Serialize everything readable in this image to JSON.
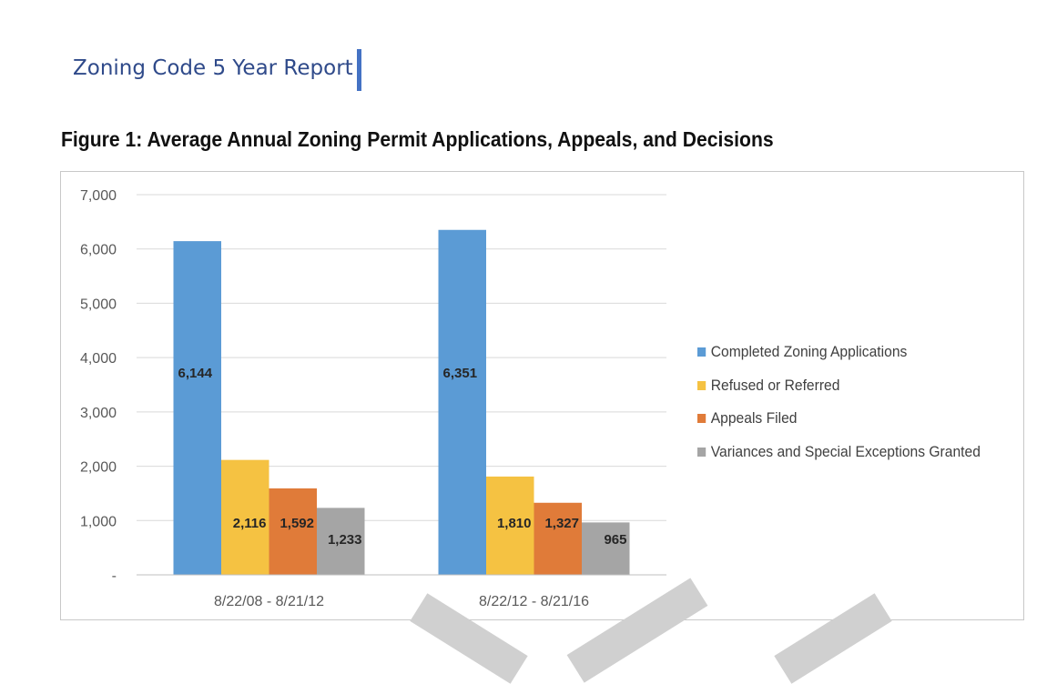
{
  "header": {
    "report_title": "Zoning Code 5 Year Report",
    "accent_color": "#4472c4"
  },
  "figure": {
    "caption": "Figure 1: Average Annual Zoning Permit Applications, Appeals, and Decisions"
  },
  "chart_data": {
    "type": "bar",
    "title": "",
    "xlabel": "",
    "ylabel": "",
    "categories": [
      "8/22/08 - 8/21/12",
      "8/22/12 - 8/21/16"
    ],
    "series": [
      {
        "name": "Completed Zoning Applications",
        "values": [
          6144,
          6351
        ],
        "labels": [
          "6,144",
          "6,351"
        ],
        "color": "#5b9bd5"
      },
      {
        "name": "Refused or Referred",
        "values": [
          2116,
          1810
        ],
        "labels": [
          "2,116",
          "1,810"
        ],
        "color": "#f5c242"
      },
      {
        "name": "Appeals Filed",
        "values": [
          1592,
          1327
        ],
        "labels": [
          "1,592",
          "1,327"
        ],
        "color": "#e07b39"
      },
      {
        "name": "Variances and Special Exceptions Granted",
        "values": [
          1233,
          965
        ],
        "labels": [
          "1,233",
          "965"
        ],
        "color": "#a5a5a5"
      }
    ],
    "ylim": [
      0,
      7000
    ],
    "yticks": [
      0,
      1000,
      2000,
      3000,
      4000,
      5000,
      6000,
      7000
    ],
    "ytick_labels": [
      "-",
      "1,000",
      "2,000",
      "3,000",
      "4,000",
      "5,000",
      "6,000",
      "7,000"
    ],
    "grid": true,
    "legend_position": "right"
  }
}
